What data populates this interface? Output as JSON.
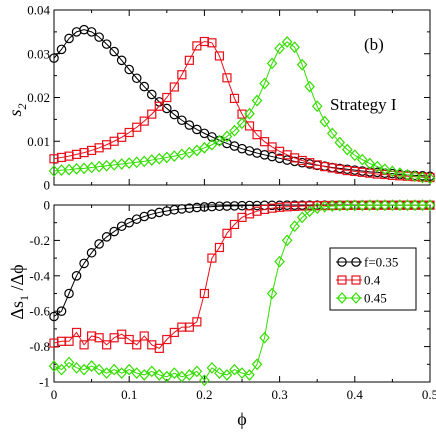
{
  "chart_data": [
    {
      "type": "line",
      "panel_label": "(b)",
      "annotation": "Strategy I",
      "xlabel": "",
      "ylabel": "s",
      "ylabel_sub": "2",
      "xlim": [
        0,
        0.5
      ],
      "ylim": [
        0,
        0.04
      ],
      "yticks": [
        0,
        0.01,
        0.02,
        0.03,
        0.04
      ],
      "ytick_labels": [
        "0",
        "0.01",
        "0.02",
        "0.03",
        "0.04"
      ],
      "grid": false,
      "series": [
        {
          "name": "f=0.35",
          "color": "#000000",
          "marker": "circle",
          "x": [
            0.0,
            0.01,
            0.02,
            0.03,
            0.04,
            0.05,
            0.06,
            0.07,
            0.08,
            0.09,
            0.1,
            0.11,
            0.12,
            0.13,
            0.14,
            0.15,
            0.16,
            0.17,
            0.18,
            0.19,
            0.2,
            0.21,
            0.22,
            0.23,
            0.24,
            0.25,
            0.26,
            0.27,
            0.28,
            0.29,
            0.3,
            0.31,
            0.32,
            0.33,
            0.34,
            0.35,
            0.36,
            0.37,
            0.38,
            0.39,
            0.4,
            0.41,
            0.42,
            0.43,
            0.44,
            0.45,
            0.46,
            0.47,
            0.48,
            0.49,
            0.5
          ],
          "y": [
            0.029,
            0.031,
            0.0335,
            0.035,
            0.0355,
            0.035,
            0.0338,
            0.0322,
            0.0305,
            0.0285,
            0.0264,
            0.0244,
            0.0225,
            0.0207,
            0.019,
            0.0175,
            0.0161,
            0.0148,
            0.0137,
            0.0127,
            0.0118,
            0.011,
            0.0102,
            0.0095,
            0.0089,
            0.0083,
            0.0078,
            0.0073,
            0.0069,
            0.0065,
            0.0061,
            0.0057,
            0.0054,
            0.0051,
            0.0048,
            0.0045,
            0.0043,
            0.004,
            0.0038,
            0.0036,
            0.0034,
            0.0032,
            0.003,
            0.0029,
            0.0027,
            0.0026,
            0.0024,
            0.0023,
            0.0022,
            0.0021,
            0.002
          ]
        },
        {
          "name": "0.4",
          "color": "#e8101a",
          "marker": "square",
          "x": [
            0.0,
            0.01,
            0.02,
            0.03,
            0.04,
            0.05,
            0.06,
            0.07,
            0.08,
            0.09,
            0.1,
            0.11,
            0.12,
            0.13,
            0.14,
            0.15,
            0.16,
            0.17,
            0.18,
            0.19,
            0.2,
            0.21,
            0.22,
            0.23,
            0.24,
            0.25,
            0.26,
            0.27,
            0.28,
            0.29,
            0.3,
            0.31,
            0.32,
            0.33,
            0.34,
            0.35,
            0.36,
            0.37,
            0.38,
            0.39,
            0.4,
            0.41,
            0.42,
            0.43,
            0.44,
            0.45,
            0.46,
            0.47,
            0.48,
            0.49,
            0.5
          ],
          "y": [
            0.006,
            0.0063,
            0.0066,
            0.007,
            0.0074,
            0.0079,
            0.0085,
            0.0092,
            0.01,
            0.0109,
            0.012,
            0.0132,
            0.0146,
            0.0162,
            0.018,
            0.02,
            0.0224,
            0.0252,
            0.0285,
            0.0318,
            0.0328,
            0.0325,
            0.0295,
            0.0245,
            0.0198,
            0.0162,
            0.0135,
            0.0115,
            0.0099,
            0.0087,
            0.0077,
            0.0069,
            0.0062,
            0.0056,
            0.0051,
            0.0046,
            0.0042,
            0.0039,
            0.0036,
            0.0033,
            0.0031,
            0.0029,
            0.0027,
            0.0025,
            0.0024,
            0.0022,
            0.0021,
            0.002,
            0.0019,
            0.0018,
            0.0017
          ]
        },
        {
          "name": "0.45",
          "color": "#33dd00",
          "marker": "diamond",
          "x": [
            0.0,
            0.01,
            0.02,
            0.03,
            0.04,
            0.05,
            0.06,
            0.07,
            0.08,
            0.09,
            0.1,
            0.11,
            0.12,
            0.13,
            0.14,
            0.15,
            0.16,
            0.17,
            0.18,
            0.19,
            0.2,
            0.21,
            0.22,
            0.23,
            0.24,
            0.25,
            0.26,
            0.27,
            0.28,
            0.29,
            0.3,
            0.31,
            0.32,
            0.33,
            0.34,
            0.35,
            0.36,
            0.37,
            0.38,
            0.39,
            0.4,
            0.41,
            0.42,
            0.43,
            0.44,
            0.45,
            0.46,
            0.47,
            0.48,
            0.49,
            0.5
          ],
          "y": [
            0.0032,
            0.0034,
            0.0035,
            0.0037,
            0.0038,
            0.004,
            0.0042,
            0.0044,
            0.0046,
            0.0048,
            0.005,
            0.0052,
            0.0054,
            0.0057,
            0.006,
            0.0063,
            0.0066,
            0.007,
            0.0074,
            0.0079,
            0.0085,
            0.0092,
            0.0101,
            0.0111,
            0.0124,
            0.0141,
            0.0163,
            0.0193,
            0.0232,
            0.0278,
            0.0312,
            0.0327,
            0.0315,
            0.0275,
            0.0225,
            0.018,
            0.0145,
            0.0118,
            0.0097,
            0.0081,
            0.0068,
            0.0058,
            0.0049,
            0.0042,
            0.0036,
            0.0031,
            0.0027,
            0.0023,
            0.002,
            0.0017,
            0.0015
          ]
        }
      ]
    },
    {
      "type": "line",
      "xlabel": "ϕ",
      "ylabel": "Δs",
      "ylabel_sub": "1",
      "ylabel_suffix": " /Δϕ",
      "xlim": [
        0,
        0.5
      ],
      "ylim": [
        -1,
        0
      ],
      "xticks": [
        0,
        0.1,
        0.2,
        0.3,
        0.4,
        0.5
      ],
      "xtick_labels": [
        "0",
        "0.1",
        "0.2",
        "0.3",
        "0.4",
        "0.5"
      ],
      "yticks": [
        -1,
        -0.8,
        -0.6,
        -0.4,
        -0.2,
        0
      ],
      "ytick_labels": [
        "-1",
        "-0.8",
        "-0.6",
        "-0.4",
        "-0.2",
        "0"
      ],
      "grid": false,
      "legend_position": "middle-right",
      "series": [
        {
          "name": "f=0.35",
          "color": "#000000",
          "marker": "circle",
          "x": [
            0.0,
            0.01,
            0.02,
            0.03,
            0.04,
            0.05,
            0.06,
            0.07,
            0.08,
            0.09,
            0.1,
            0.11,
            0.12,
            0.13,
            0.14,
            0.15,
            0.16,
            0.17,
            0.18,
            0.19,
            0.2,
            0.21,
            0.22,
            0.23,
            0.24,
            0.25,
            0.26,
            0.27,
            0.28,
            0.29,
            0.3,
            0.31,
            0.32,
            0.33,
            0.34,
            0.35,
            0.36,
            0.37,
            0.38,
            0.39,
            0.4,
            0.41,
            0.42,
            0.43,
            0.44,
            0.45,
            0.46,
            0.47,
            0.48,
            0.49,
            0.5
          ],
          "y": [
            -0.63,
            -0.6,
            -0.5,
            -0.4,
            -0.33,
            -0.27,
            -0.22,
            -0.18,
            -0.15,
            -0.12,
            -0.1,
            -0.08,
            -0.065,
            -0.052,
            -0.042,
            -0.034,
            -0.027,
            -0.022,
            -0.018,
            -0.014,
            -0.011,
            -0.009,
            -0.007,
            -0.006,
            -0.005,
            -0.004,
            -0.003,
            -0.003,
            -0.002,
            -0.002,
            -0.002,
            -0.001,
            -0.001,
            -0.001,
            -0.001,
            -0.001,
            -0.001,
            -0.001,
            -0.001,
            -0.001,
            -0.001,
            -0.001,
            -0.001,
            -0.001,
            -0.001,
            -0.001,
            -0.001,
            -0.001,
            -0.001,
            -0.001,
            -0.001
          ]
        },
        {
          "name": "0.4",
          "color": "#e8101a",
          "marker": "square",
          "x": [
            0.0,
            0.01,
            0.02,
            0.03,
            0.04,
            0.05,
            0.06,
            0.07,
            0.08,
            0.09,
            0.1,
            0.11,
            0.12,
            0.13,
            0.14,
            0.15,
            0.16,
            0.17,
            0.18,
            0.19,
            0.2,
            0.21,
            0.22,
            0.23,
            0.24,
            0.25,
            0.26,
            0.27,
            0.28,
            0.29,
            0.3,
            0.31,
            0.32,
            0.33,
            0.34,
            0.35,
            0.36,
            0.37,
            0.38,
            0.39,
            0.4,
            0.41,
            0.42,
            0.43,
            0.44,
            0.45,
            0.46,
            0.47,
            0.48,
            0.49,
            0.5
          ],
          "y": [
            -0.78,
            -0.77,
            -0.77,
            -0.72,
            -0.79,
            -0.74,
            -0.75,
            -0.79,
            -0.75,
            -0.73,
            -0.76,
            -0.79,
            -0.74,
            -0.79,
            -0.81,
            -0.76,
            -0.72,
            -0.69,
            -0.69,
            -0.66,
            -0.5,
            -0.3,
            -0.24,
            -0.16,
            -0.11,
            -0.07,
            -0.05,
            -0.035,
            -0.025,
            -0.018,
            -0.013,
            -0.01,
            -0.008,
            -0.006,
            -0.005,
            -0.004,
            -0.003,
            -0.003,
            -0.002,
            -0.002,
            -0.002,
            -0.002,
            -0.001,
            -0.001,
            -0.001,
            -0.001,
            -0.001,
            -0.001,
            -0.001,
            -0.001,
            -0.001
          ]
        },
        {
          "name": "0.45",
          "color": "#33dd00",
          "marker": "diamond",
          "x": [
            0.0,
            0.01,
            0.02,
            0.03,
            0.04,
            0.05,
            0.06,
            0.07,
            0.08,
            0.09,
            0.1,
            0.11,
            0.12,
            0.13,
            0.14,
            0.15,
            0.16,
            0.17,
            0.18,
            0.19,
            0.2,
            0.21,
            0.22,
            0.23,
            0.24,
            0.25,
            0.26,
            0.27,
            0.28,
            0.29,
            0.3,
            0.31,
            0.32,
            0.33,
            0.34,
            0.35,
            0.36,
            0.37,
            0.38,
            0.39,
            0.4,
            0.41,
            0.42,
            0.43,
            0.44,
            0.45,
            0.46,
            0.47,
            0.48,
            0.49,
            0.5
          ],
          "y": [
            -0.91,
            -0.93,
            -0.89,
            -0.92,
            -0.93,
            -0.91,
            -0.93,
            -0.95,
            -0.93,
            -0.95,
            -0.93,
            -0.95,
            -0.96,
            -0.94,
            -0.96,
            -0.97,
            -0.95,
            -0.97,
            -0.96,
            -0.94,
            -0.99,
            -0.92,
            -0.95,
            -0.96,
            -0.93,
            -0.95,
            -0.96,
            -0.9,
            -0.75,
            -0.5,
            -0.32,
            -0.2,
            -0.12,
            -0.07,
            -0.035,
            -0.018,
            -0.01,
            -0.006,
            -0.004,
            -0.003,
            -0.002,
            -0.002,
            -0.001,
            -0.001,
            -0.001,
            -0.001,
            -0.001,
            -0.001,
            -0.001,
            -0.001,
            -0.001
          ]
        }
      ]
    }
  ]
}
